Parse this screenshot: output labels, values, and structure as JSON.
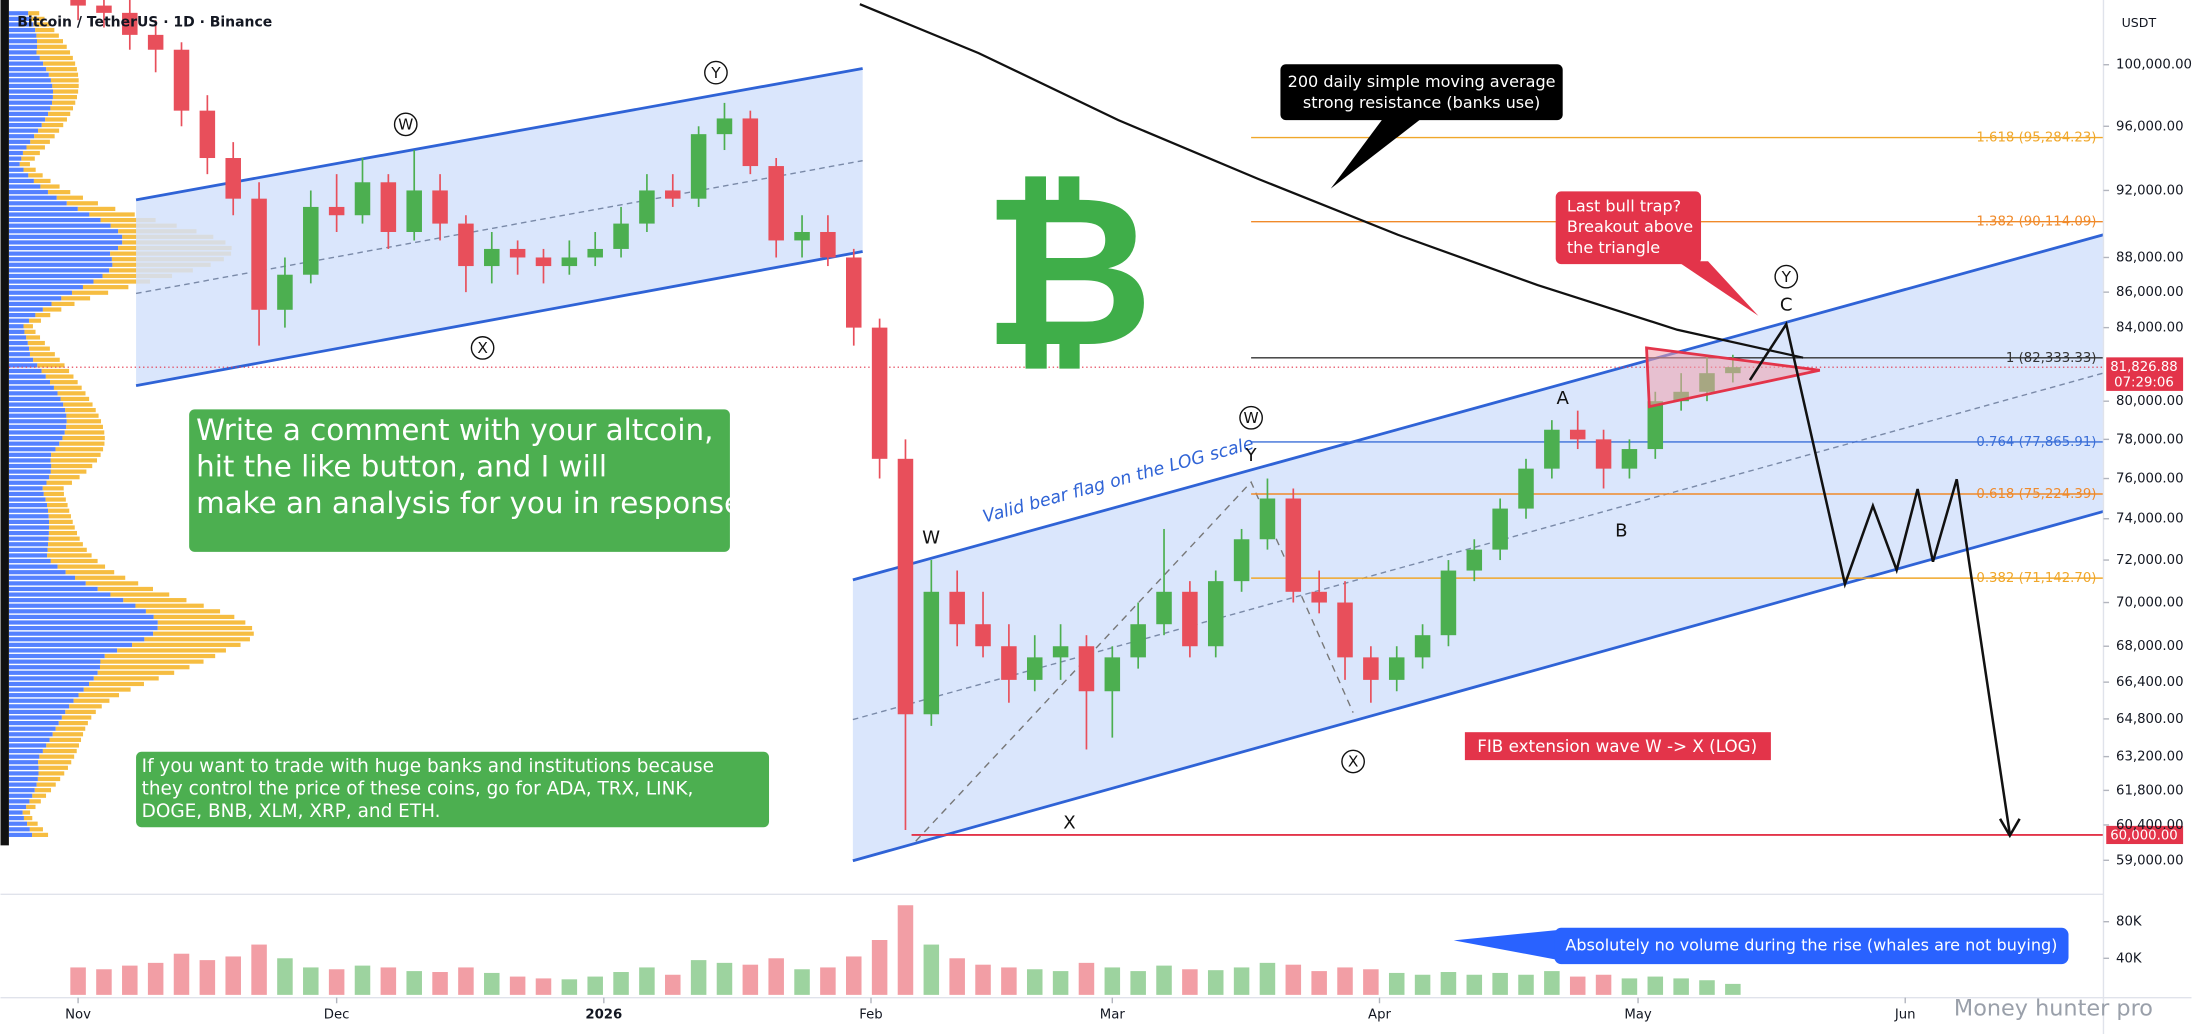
{
  "chart_data": {
    "type": "candlestick",
    "title": "Bitcoin / TetherUS · 1D · Binance",
    "currency": "USDT",
    "log_scale": true,
    "up_color": "#4caf50",
    "down_color": "#e84f5b",
    "x": [
      0,
      3,
      6,
      9,
      12,
      15,
      18,
      21,
      24,
      27,
      30,
      33,
      36,
      39,
      42,
      45,
      48,
      51,
      54,
      57,
      60,
      63,
      66,
      69,
      72,
      75,
      78,
      81,
      84,
      87,
      90,
      93,
      96,
      99,
      102,
      105,
      108,
      111,
      114,
      117,
      120,
      123,
      126,
      129,
      132,
      135,
      138,
      141,
      144,
      147,
      150,
      153,
      156,
      159,
      162,
      165,
      168,
      171,
      174,
      177,
      180,
      183,
      186,
      189,
      192
    ],
    "candles": [
      [
        104500,
        105500,
        103000,
        104000
      ],
      [
        104000,
        106000,
        102500,
        103500
      ],
      [
        103500,
        104500,
        101000,
        102000
      ],
      [
        102000,
        103000,
        99500,
        101000
      ],
      [
        101000,
        101500,
        96000,
        97000
      ],
      [
        97000,
        98000,
        93000,
        94000
      ],
      [
        94000,
        95000,
        90500,
        91500
      ],
      [
        91500,
        92500,
        83000,
        85000
      ],
      [
        85000,
        88000,
        84000,
        87000
      ],
      [
        87000,
        92000,
        86500,
        91000
      ],
      [
        91000,
        93000,
        89500,
        90500
      ],
      [
        90500,
        94000,
        90000,
        92500
      ],
      [
        92500,
        93000,
        88500,
        89500
      ],
      [
        89500,
        94500,
        89000,
        92000
      ],
      [
        92000,
        93000,
        89000,
        90000
      ],
      [
        90000,
        90500,
        86000,
        87500
      ],
      [
        87500,
        89500,
        86500,
        88500
      ],
      [
        88500,
        89000,
        87000,
        88000
      ],
      [
        88000,
        88500,
        86500,
        87500
      ],
      [
        87500,
        89000,
        87000,
        88000
      ],
      [
        88000,
        89500,
        87500,
        88500
      ],
      [
        88500,
        91000,
        88000,
        90000
      ],
      [
        90000,
        93000,
        89500,
        92000
      ],
      [
        92000,
        93000,
        91000,
        91500
      ],
      [
        91500,
        96000,
        91000,
        95500
      ],
      [
        95500,
        97500,
        94500,
        96500
      ],
      [
        96500,
        97000,
        93000,
        93500
      ],
      [
        93500,
        94000,
        88000,
        89000
      ],
      [
        89000,
        90500,
        88000,
        89500
      ],
      [
        89500,
        90500,
        87500,
        88000
      ],
      [
        88000,
        88500,
        83000,
        84000
      ],
      [
        84000,
        84500,
        76000,
        77000
      ],
      [
        77000,
        78000,
        60200,
        65000
      ],
      [
        65000,
        72000,
        64500,
        70500
      ],
      [
        70500,
        71500,
        68000,
        69000
      ],
      [
        69000,
        70500,
        67500,
        68000
      ],
      [
        68000,
        69000,
        65500,
        66500
      ],
      [
        66500,
        68500,
        66000,
        67500
      ],
      [
        67500,
        69000,
        66500,
        68000
      ],
      [
        68000,
        68500,
        63500,
        66000
      ],
      [
        66000,
        68000,
        64000,
        67500
      ],
      [
        67500,
        70000,
        67000,
        69000
      ],
      [
        69000,
        73500,
        68500,
        70500
      ],
      [
        70500,
        71000,
        67500,
        68000
      ],
      [
        68000,
        71500,
        67500,
        71000
      ],
      [
        71000,
        73500,
        70500,
        73000
      ],
      [
        73000,
        76000,
        72500,
        75000
      ],
      [
        75000,
        75500,
        70000,
        70500
      ],
      [
        70500,
        71500,
        69500,
        70000
      ],
      [
        70000,
        71000,
        66500,
        67500
      ],
      [
        67500,
        68000,
        65500,
        66500
      ],
      [
        66500,
        68000,
        66000,
        67500
      ],
      [
        67500,
        69000,
        67000,
        68500
      ],
      [
        68500,
        72000,
        68000,
        71500
      ],
      [
        71500,
        73000,
        71000,
        72500
      ],
      [
        72500,
        75000,
        72000,
        74500
      ],
      [
        74500,
        77000,
        74000,
        76500
      ],
      [
        76500,
        79000,
        76000,
        78500
      ],
      [
        78500,
        79500,
        77500,
        78000
      ],
      [
        78000,
        78500,
        75500,
        76500
      ],
      [
        76500,
        78000,
        76000,
        77500
      ],
      [
        77500,
        80500,
        77000,
        80000
      ],
      [
        80000,
        81500,
        79500,
        80500
      ],
      [
        80500,
        82500,
        80000,
        81500
      ],
      [
        81500,
        82500,
        81000,
        81826.88
      ]
    ],
    "volumes": [
      30000,
      28000,
      32000,
      35000,
      45000,
      38000,
      42000,
      55000,
      40000,
      30000,
      28000,
      32000,
      30000,
      26000,
      25000,
      30000,
      24000,
      20000,
      18000,
      17000,
      20000,
      25000,
      30000,
      22000,
      38000,
      35000,
      33000,
      40000,
      28000,
      30000,
      42000,
      60000,
      98000,
      55000,
      40000,
      33000,
      30000,
      28000,
      26000,
      35000,
      30000,
      26000,
      32000,
      28000,
      27000,
      30000,
      35000,
      33000,
      26000,
      30000,
      28000,
      24000,
      22000,
      25000,
      22000,
      24000,
      22000,
      26000,
      20000,
      22000,
      18000,
      20000,
      18000,
      16000,
      12000
    ],
    "xlim": [
      -9,
      235
    ],
    "xticks": [
      {
        "value": 0,
        "label": "Nov"
      },
      {
        "value": 30,
        "label": "Dec"
      },
      {
        "value": 61,
        "label": "2026"
      },
      {
        "value": 92,
        "label": "Feb"
      },
      {
        "value": 120,
        "label": "Mar"
      },
      {
        "value": 151,
        "label": "Apr"
      },
      {
        "value": 181,
        "label": "May"
      },
      {
        "value": 212,
        "label": "Jun"
      }
    ],
    "ylim": [
      57900,
      104000
    ],
    "yticks": [
      {
        "value": 100000,
        "label": "100,000.00"
      },
      {
        "value": 96000,
        "label": "96,000.00"
      },
      {
        "value": 92000,
        "label": "92,000.00"
      },
      {
        "value": 88000,
        "label": "88,000.00"
      },
      {
        "value": 86000,
        "label": "86,000.00"
      },
      {
        "value": 84000,
        "label": "84,000.00"
      },
      {
        "value": 80000,
        "label": "80,000.00"
      },
      {
        "value": 78000,
        "label": "78,000.00"
      },
      {
        "value": 76000,
        "label": "76,000.00"
      },
      {
        "value": 74000,
        "label": "74,000.00"
      },
      {
        "value": 72000,
        "label": "72,000.00"
      },
      {
        "value": 70000,
        "label": "70,000.00"
      },
      {
        "value": 68000,
        "label": "68,000.00"
      },
      {
        "value": 66400,
        "label": "66,400.00"
      },
      {
        "value": 64800,
        "label": "64,800.00"
      },
      {
        "value": 63200,
        "label": "63,200.00"
      },
      {
        "value": 61800,
        "label": "61,800.00"
      },
      {
        "value": 60400,
        "label": "60,400.00"
      },
      {
        "value": 59000,
        "label": "59,000.00"
      }
    ],
    "volume_lim": [
      0,
      110000
    ],
    "volume_ticks": [
      {
        "value": 80000,
        "label": "80K"
      },
      {
        "value": 40000,
        "label": "40K"
      }
    ],
    "last_price": {
      "value": 81826.88,
      "label": "81,826.88"
    },
    "countdown": "07:29:06",
    "support": {
      "value": 60000,
      "label": "60,000.00"
    },
    "fib_levels": [
      {
        "ratio": 1.618,
        "price": 95284.23,
        "label": "1.618 (95,284.23)",
        "color": "#f0a72a"
      },
      {
        "ratio": 1.382,
        "price": 90114.09,
        "label": "1.382 (90,114.09)",
        "color": "#f08a2a"
      },
      {
        "ratio": 1,
        "price": 82333.33,
        "label": "1 (82,333.33)",
        "color": "#333333"
      },
      {
        "ratio": 0.764,
        "price": 77865.91,
        "label": "0.764 (77,865.91)",
        "color": "#3b6fd8"
      },
      {
        "ratio": 0.618,
        "price": 75224.39,
        "label": "0.618 (75,224.39)",
        "color": "#f08a2a"
      },
      {
        "ratio": 0.382,
        "price": 71142.7,
        "label": "0.382 (71,142.70)",
        "color": "#f0a72a"
      }
    ],
    "annotations": {
      "ma_note": [
        "200 daily simple moving average",
        "strong resistance (banks use)"
      ],
      "bull_trap": [
        "Last bull trap?",
        "Breakout above",
        "the triangle"
      ],
      "comment_box": [
        "Write a comment with your altcoin,",
        "hit the like button, and I will",
        "make an analysis for you in response."
      ],
      "banks_box": [
        "If you want to trade with huge banks and institutions because",
        "they control the price of these coins, go for ADA, TRX, LINK,",
        "DOGE, BNB, XLM, XRP, and ETH."
      ],
      "bear_flag": "Valid bear flag on the LOG scale",
      "fib_extension": "FIB extension wave W -> X (LOG)",
      "volume_note": "Absolutely no volume during the rise (whales are not buying)"
    },
    "wave_labels": [
      "W",
      "X",
      "Y",
      "W",
      "X",
      "A",
      "B",
      "C",
      "Y",
      "W",
      "X",
      "Y"
    ],
    "logo": "₿",
    "watermark": "Money hunter pro"
  }
}
